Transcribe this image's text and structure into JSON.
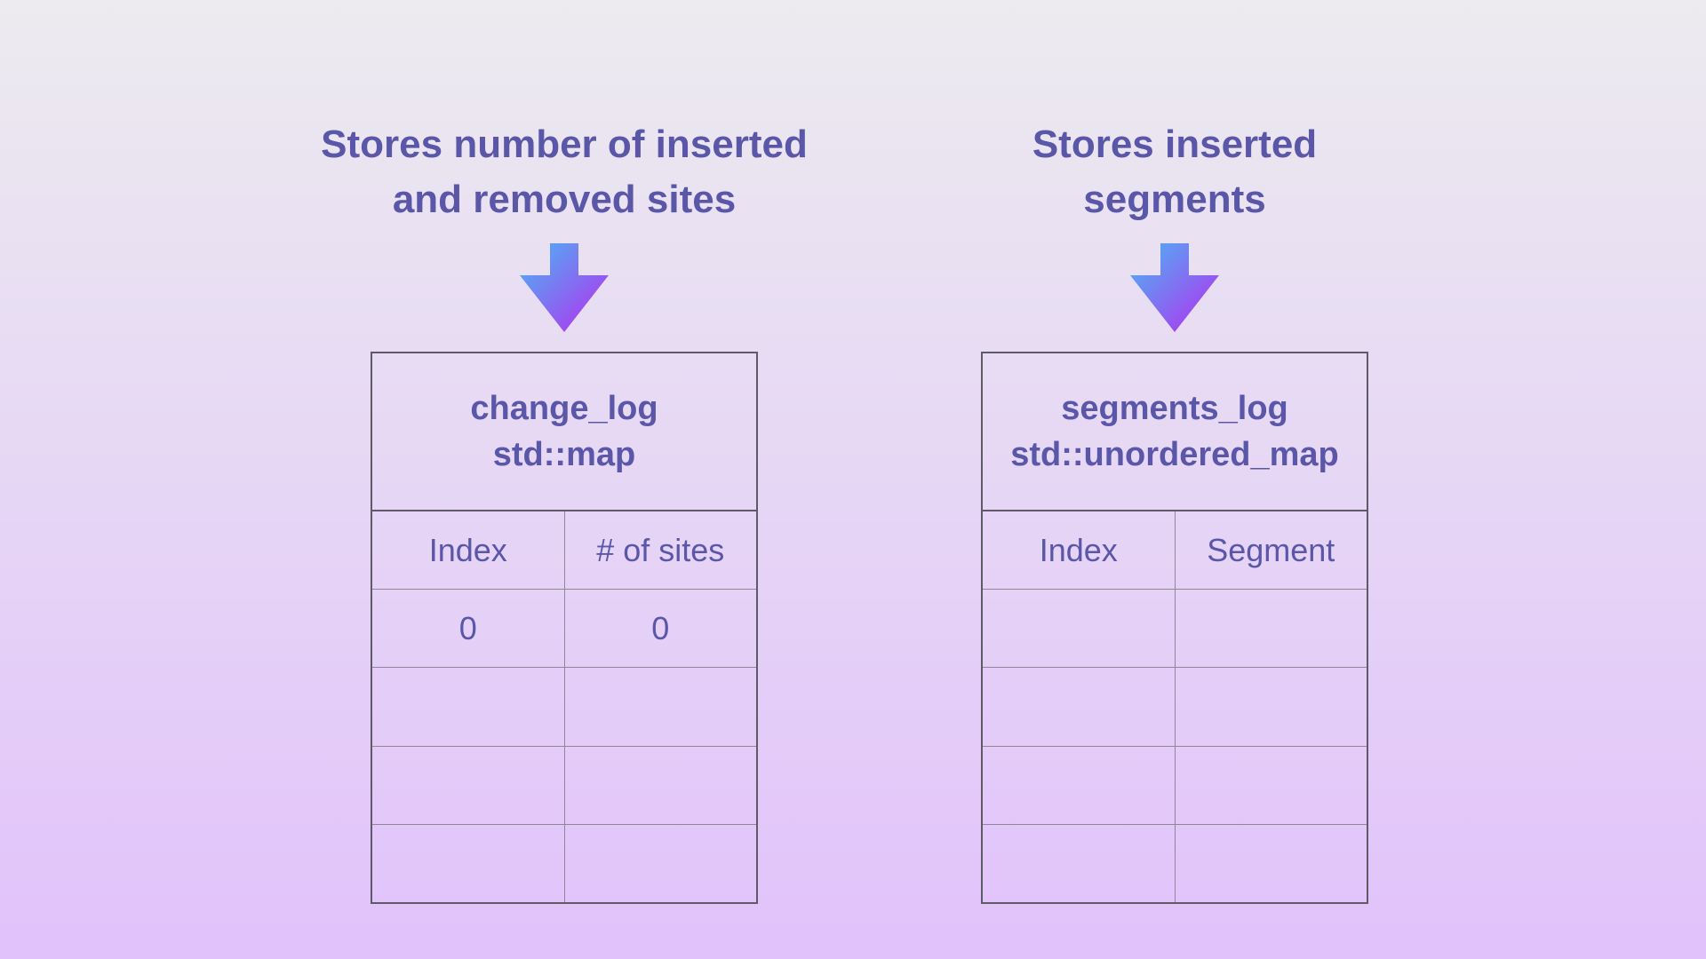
{
  "colors": {
    "text": "#5a56a8",
    "background_top": "#ecebef",
    "background_bottom": "#e1c2fb",
    "arrow_start": "#5f9cf3",
    "arrow_end": "#a83ff0",
    "border": "#5e5a66"
  },
  "panels": [
    {
      "caption_lines": [
        "Stores number of inserted",
        "and removed sites"
      ],
      "table": {
        "name": "change_log",
        "type": "std::map",
        "headers": [
          "Index",
          "# of sites"
        ],
        "rows": [
          [
            "0",
            "0"
          ],
          [
            "",
            ""
          ],
          [
            "",
            ""
          ],
          [
            "",
            ""
          ]
        ]
      }
    },
    {
      "caption_lines": [
        "Stores inserted",
        "segments"
      ],
      "table": {
        "name": "segments_log",
        "type": "std::unordered_map",
        "headers": [
          "Index",
          "Segment"
        ],
        "rows": [
          [
            "",
            ""
          ],
          [
            "",
            ""
          ],
          [
            "",
            ""
          ],
          [
            "",
            ""
          ]
        ]
      }
    }
  ]
}
